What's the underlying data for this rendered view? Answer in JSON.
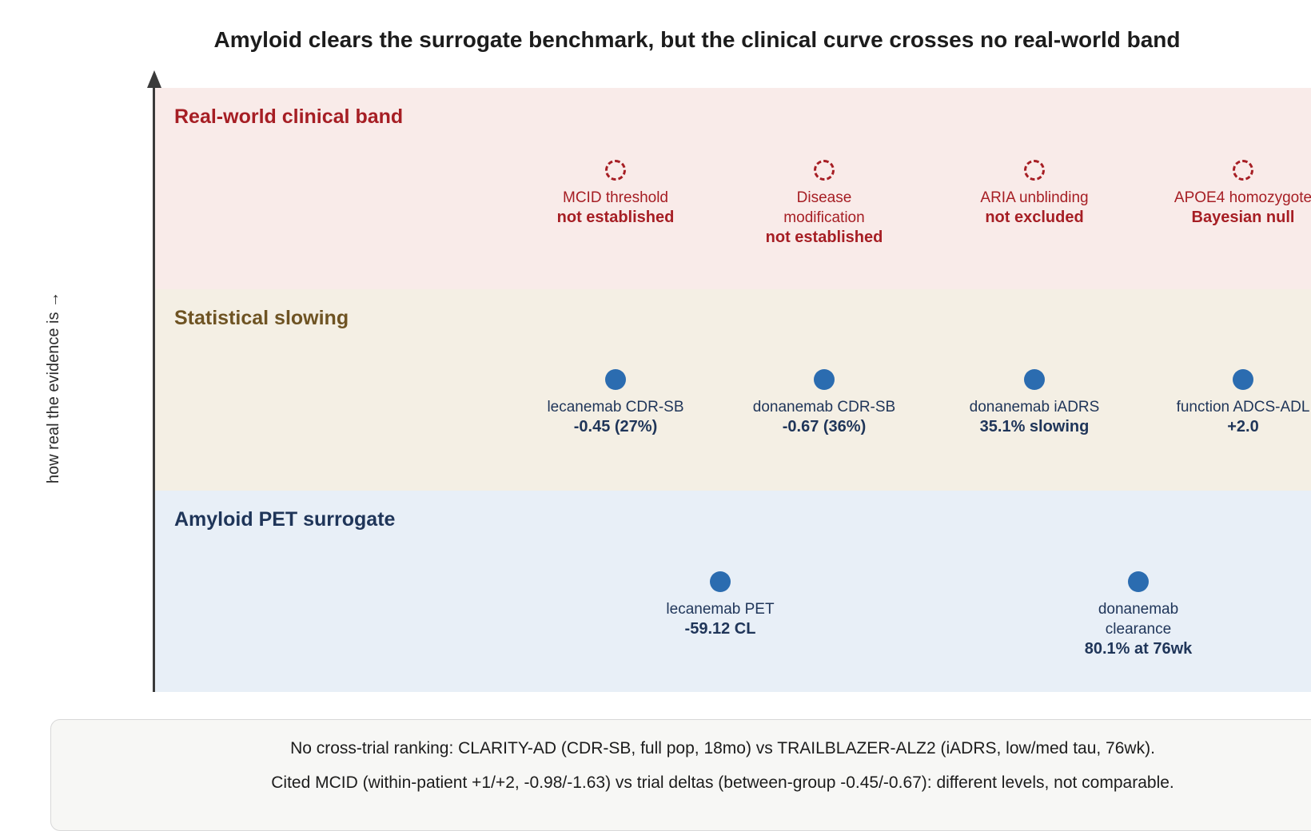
{
  "title": "Amyloid clears the surrogate benchmark, but the clinical curve crosses no real-world band",
  "y_axis_label": "how real the evidence is →",
  "colors": {
    "clinical_band_bg": "#f9ebe9",
    "stat_band_bg": "#f4efe4",
    "pet_band_bg": "#e8eff7",
    "clinical_text": "#a61e24",
    "stat_text": "#6e5323",
    "pet_text": "#1f3559",
    "marker_fill": "#2b6cb0"
  },
  "bands": {
    "clinical": {
      "title": "Real-world clinical band",
      "markers": [
        {
          "label": "MCID threshold",
          "value": "not established",
          "style": "dashed-circle"
        },
        {
          "label": "Disease modification",
          "value": "not established",
          "style": "dashed-circle"
        },
        {
          "label": "ARIA unblinding",
          "value": "not excluded",
          "style": "dashed-circle"
        },
        {
          "label": "APOE4 homozygote",
          "value": "Bayesian null",
          "style": "dashed-circle"
        }
      ]
    },
    "statistical": {
      "title": "Statistical slowing",
      "markers": [
        {
          "label": "lecanemab CDR-SB",
          "value": "-0.45 (27%)",
          "style": "filled-dot"
        },
        {
          "label": "donanemab CDR-SB",
          "value": "-0.67 (36%)",
          "style": "filled-dot"
        },
        {
          "label": "donanemab iADRS",
          "value": "35.1% slowing",
          "style": "filled-dot"
        },
        {
          "label": "function ADCS-ADL",
          "value": "+2.0",
          "style": "filled-dot"
        }
      ]
    },
    "pet": {
      "title": "Amyloid PET surrogate",
      "markers": [
        {
          "label": "lecanemab PET",
          "value": "-59.12 CL",
          "style": "filled-dot"
        },
        {
          "label": "donanemab clearance",
          "value": "80.1% at 76wk",
          "style": "filled-dot"
        }
      ]
    }
  },
  "note": {
    "line1": "No cross-trial ranking: CLARITY-AD (CDR-SB, full pop, 18mo) vs TRAILBLAZER-ALZ2 (iADRS, low/med tau, 76wk).",
    "line2": "Cited MCID (within-patient +1/+2, -0.98/-1.63) vs trial deltas (between-group -0.45/-0.67): different levels, not comparable."
  }
}
